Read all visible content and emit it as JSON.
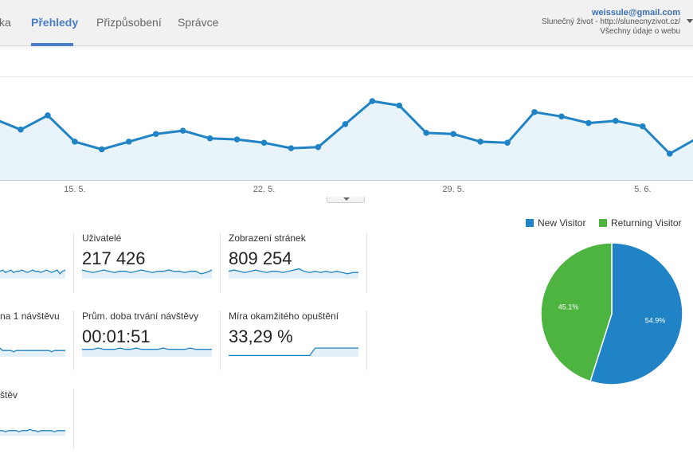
{
  "header": {
    "tabs": [
      {
        "label": "ka",
        "active": false
      },
      {
        "label": "Přehledy",
        "active": true
      },
      {
        "label": "Přizpůsobení",
        "active": false
      },
      {
        "label": "Správce",
        "active": false
      }
    ],
    "account": {
      "email": "weissule@gmail.com",
      "property": "Slunečný život - http://slunecnyzivot.cz/",
      "view": "Všechny údaje o webu"
    }
  },
  "chart_data": [
    {
      "type": "line",
      "x_tick_labels": [
        "15. 5.",
        "22. 5.",
        "29. 5.",
        "5. 6."
      ],
      "values": [
        56,
        46,
        59,
        35,
        28,
        35,
        42,
        45,
        38,
        37,
        34,
        29,
        30,
        51,
        72,
        68,
        43,
        42,
        35,
        34,
        62,
        58,
        52,
        54,
        49,
        24,
        38
      ],
      "series_color": "#1f83c5",
      "grid": true
    },
    {
      "type": "pie",
      "legend_position": "top-right",
      "series": [
        {
          "name": "New Visitor",
          "value": 54.9,
          "label": "54.9%",
          "color": "#1f83c5"
        },
        {
          "name": "Returning Visitor",
          "value": 45.1,
          "label": "45.1%",
          "color": "#4cb43f"
        }
      ]
    }
  ],
  "metrics": [
    {
      "id": "m1",
      "label": "",
      "value": "",
      "spark": [
        6,
        7,
        5,
        6,
        7,
        5,
        6,
        6,
        7,
        6,
        5,
        6,
        7,
        6,
        6,
        5,
        6,
        7,
        6,
        5,
        6,
        7,
        4,
        6,
        7
      ]
    },
    {
      "id": "m2",
      "label": "Uživatelé",
      "value": "217 426",
      "spark": [
        7,
        6,
        5,
        6,
        7,
        6,
        5,
        6,
        6,
        5,
        6,
        7,
        6,
        5,
        6,
        6,
        7,
        6,
        6,
        5,
        6,
        6,
        4,
        5,
        7
      ]
    },
    {
      "id": "m3",
      "label": "Zobrazení stránek",
      "value": "809 254",
      "spark": [
        6,
        7,
        6,
        5,
        6,
        7,
        6,
        5,
        6,
        6,
        5,
        6,
        7,
        8,
        6,
        5,
        6,
        5,
        6,
        5,
        6,
        5,
        4,
        5,
        5
      ]
    },
    {
      "id": "m4",
      "label": "na 1 návštěvu",
      "value": "",
      "spark": [
        7,
        5,
        5,
        5,
        5,
        4,
        5,
        5,
        5,
        5,
        5,
        5,
        5,
        5,
        5,
        5,
        5,
        5,
        5,
        4,
        5,
        5,
        5,
        5,
        5
      ]
    },
    {
      "id": "m5",
      "label": "Prům. doba trvání návštěvy",
      "value": "00:01:51",
      "spark": [
        6,
        6,
        6,
        7,
        6,
        6,
        6,
        7,
        6,
        6,
        7,
        6,
        6,
        6,
        6,
        7,
        6,
        6,
        6,
        6,
        7,
        6,
        6,
        6,
        6
      ]
    },
    {
      "id": "m6",
      "label": "Míra okamžitého opuštění",
      "value": "33,29 %",
      "spark": [
        1,
        1,
        1,
        1,
        1,
        1,
        1,
        1,
        1,
        1,
        1,
        1,
        1,
        1,
        1,
        1,
        7,
        7,
        7,
        7,
        7,
        7,
        7,
        7,
        7
      ]
    },
    {
      "id": "m7",
      "label": "štěv",
      "value": "",
      "spark": [
        4,
        4,
        3,
        4,
        4,
        4,
        4,
        3,
        4,
        4,
        4,
        5,
        4,
        4,
        3,
        4,
        4,
        4,
        4,
        4,
        3,
        4,
        4,
        4,
        4
      ]
    }
  ]
}
